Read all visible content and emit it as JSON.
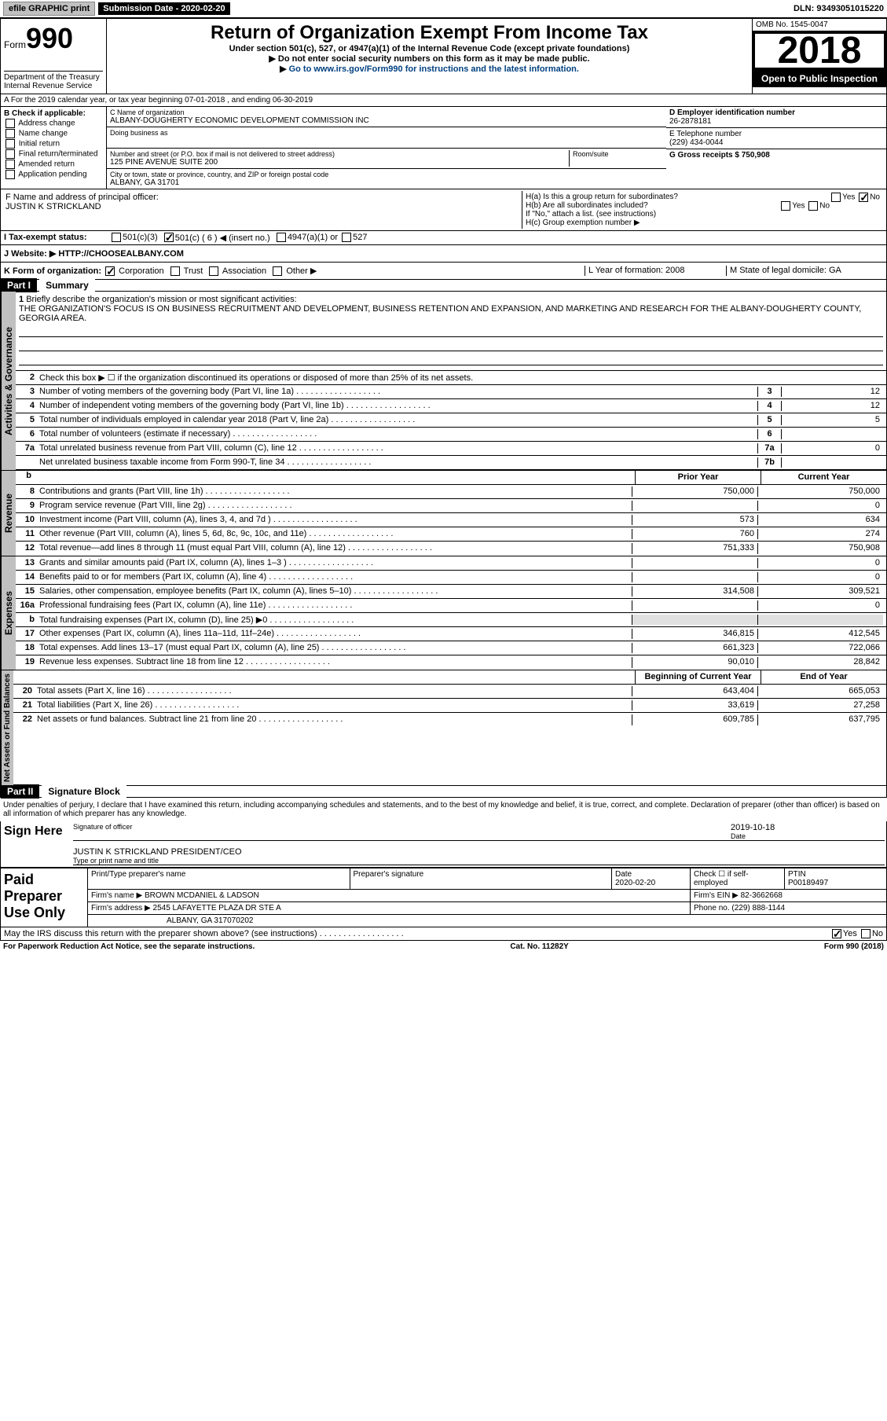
{
  "topbar": {
    "efile": "efile GRAPHIC print",
    "submission_label": "Submission Date - 2020-02-20",
    "dln_label": "DLN: 93493051015220"
  },
  "header": {
    "form_prefix": "Form",
    "form_number": "990",
    "dept": "Department of the Treasury\nInternal Revenue Service",
    "title": "Return of Organization Exempt From Income Tax",
    "under_section": "Under section 501(c), 527, or 4947(a)(1) of the Internal Revenue Code (except private foundations)",
    "ssn_notice": "Do not enter social security numbers on this form as it may be made public.",
    "goto": "Go to www.irs.gov/Form990 for instructions and the latest information.",
    "omb": "OMB No. 1545-0047",
    "year": "2018",
    "open_public": "Open to Public Inspection"
  },
  "rowA": "A For the 2019 calendar year, or tax year beginning 07-01-2018 , and ending 06-30-2019",
  "sectionB": {
    "title": "B Check if applicable:",
    "items": [
      "Address change",
      "Name change",
      "Initial return",
      "Final return/terminated",
      "Amended return",
      "Application pending"
    ]
  },
  "sectionC": {
    "name_label": "C Name of organization",
    "name": "ALBANY-DOUGHERTY ECONOMIC DEVELOPMENT COMMISSION INC",
    "dba_label": "Doing business as",
    "addr_label": "Number and street (or P.O. box if mail is not delivered to street address)",
    "addr": "125 PINE AVENUE SUITE 200",
    "room_label": "Room/suite",
    "city_label": "City or town, state or province, country, and ZIP or foreign postal code",
    "city": "ALBANY, GA  31701"
  },
  "sectionD": {
    "label": "D Employer identification number",
    "value": "26-2878181"
  },
  "sectionE": {
    "label": "E Telephone number",
    "value": "(229) 434-0044"
  },
  "sectionG": {
    "label": "G Gross receipts $ 750,908"
  },
  "sectionF": {
    "label": "F Name and address of principal officer:",
    "value": "JUSTIN K STRICKLAND"
  },
  "sectionH": {
    "a": "H(a) Is this a group return for subordinates?",
    "a_yes": "Yes",
    "a_no": "No",
    "b": "H(b) Are all subordinates included?",
    "b_yes": "Yes",
    "b_no": "No",
    "b_note": "If \"No,\" attach a list. (see instructions)",
    "c": "H(c) Group exemption number ▶"
  },
  "sectionI": {
    "label": "I Tax-exempt status:",
    "opts": [
      "501(c)(3)",
      "501(c) ( 6 ) ◀ (insert no.)",
      "4947(a)(1) or",
      "527"
    ]
  },
  "sectionJ": {
    "label": "J Website: ▶",
    "value": "HTTP://CHOOSEALBANY.COM"
  },
  "sectionK": {
    "label": "K Form of organization:",
    "opts": [
      "Corporation",
      "Trust",
      "Association",
      "Other ▶"
    ]
  },
  "sectionL": {
    "label": "L Year of formation: 2008"
  },
  "sectionM": {
    "label": "M State of legal domicile: GA"
  },
  "partI": {
    "label": "Part I",
    "title": "Summary"
  },
  "summary": {
    "q1": "Briefly describe the organization's mission or most significant activities:",
    "mission": "THE ORGANIZATION'S FOCUS IS ON BUSINESS RECRUITMENT AND DEVELOPMENT, BUSINESS RETENTION AND EXPANSION, AND MARKETING AND RESEARCH FOR THE ALBANY-DOUGHERTY COUNTY, GEORGIA AREA.",
    "q2": "Check this box ▶ ☐ if the organization discontinued its operations or disposed of more than 25% of its net assets.",
    "lines_simple": [
      {
        "num": "3",
        "text": "Number of voting members of the governing body (Part VI, line 1a)",
        "box": "3",
        "val": "12"
      },
      {
        "num": "4",
        "text": "Number of independent voting members of the governing body (Part VI, line 1b)",
        "box": "4",
        "val": "12"
      },
      {
        "num": "5",
        "text": "Total number of individuals employed in calendar year 2018 (Part V, line 2a)",
        "box": "5",
        "val": "5"
      },
      {
        "num": "6",
        "text": "Total number of volunteers (estimate if necessary)",
        "box": "6",
        "val": ""
      },
      {
        "num": "7a",
        "text": "Total unrelated business revenue from Part VIII, column (C), line 12",
        "box": "7a",
        "val": "0"
      },
      {
        "num": "",
        "text": "Net unrelated business taxable income from Form 990-T, line 34",
        "box": "7b",
        "val": ""
      }
    ],
    "col_prior": "Prior Year",
    "col_current": "Current Year",
    "revenue": [
      {
        "num": "8",
        "text": "Contributions and grants (Part VIII, line 1h)",
        "prior": "750,000",
        "curr": "750,000"
      },
      {
        "num": "9",
        "text": "Program service revenue (Part VIII, line 2g)",
        "prior": "",
        "curr": "0"
      },
      {
        "num": "10",
        "text": "Investment income (Part VIII, column (A), lines 3, 4, and 7d )",
        "prior": "573",
        "curr": "634"
      },
      {
        "num": "11",
        "text": "Other revenue (Part VIII, column (A), lines 5, 6d, 8c, 9c, 10c, and 11e)",
        "prior": "760",
        "curr": "274"
      },
      {
        "num": "12",
        "text": "Total revenue—add lines 8 through 11 (must equal Part VIII, column (A), line 12)",
        "prior": "751,333",
        "curr": "750,908"
      }
    ],
    "expenses": [
      {
        "num": "13",
        "text": "Grants and similar amounts paid (Part IX, column (A), lines 1–3 )",
        "prior": "",
        "curr": "0"
      },
      {
        "num": "14",
        "text": "Benefits paid to or for members (Part IX, column (A), line 4)",
        "prior": "",
        "curr": "0"
      },
      {
        "num": "15",
        "text": "Salaries, other compensation, employee benefits (Part IX, column (A), lines 5–10)",
        "prior": "314,508",
        "curr": "309,521"
      },
      {
        "num": "16a",
        "text": "Professional fundraising fees (Part IX, column (A), line 11e)",
        "prior": "",
        "curr": "0"
      },
      {
        "num": "b",
        "text": "Total fundraising expenses (Part IX, column (D), line 25) ▶0",
        "prior": "",
        "curr": "",
        "shaded": true
      },
      {
        "num": "17",
        "text": "Other expenses (Part IX, column (A), lines 11a–11d, 11f–24e)",
        "prior": "346,815",
        "curr": "412,545"
      },
      {
        "num": "18",
        "text": "Total expenses. Add lines 13–17 (must equal Part IX, column (A), line 25)",
        "prior": "661,323",
        "curr": "722,066"
      },
      {
        "num": "19",
        "text": "Revenue less expenses. Subtract line 18 from line 12",
        "prior": "90,010",
        "curr": "28,842"
      }
    ],
    "col_begin": "Beginning of Current Year",
    "col_end": "End of Year",
    "netassets": [
      {
        "num": "20",
        "text": "Total assets (Part X, line 16)",
        "prior": "643,404",
        "curr": "665,053"
      },
      {
        "num": "21",
        "text": "Total liabilities (Part X, line 26)",
        "prior": "33,619",
        "curr": "27,258"
      },
      {
        "num": "22",
        "text": "Net assets or fund balances. Subtract line 21 from line 20",
        "prior": "609,785",
        "curr": "637,795"
      }
    ]
  },
  "partII": {
    "label": "Part II",
    "title": "Signature Block"
  },
  "penalties": "Under penalties of perjury, I declare that I have examined this return, including accompanying schedules and statements, and to the best of my knowledge and belief, it is true, correct, and complete. Declaration of preparer (other than officer) is based on all information of which preparer has any knowledge.",
  "sign": {
    "here": "Sign Here",
    "sig_label": "Signature of officer",
    "date_label": "Date",
    "date": "2019-10-18",
    "name": "JUSTIN K STRICKLAND  PRESIDENT/CEO",
    "name_label": "Type or print name and title"
  },
  "paid": {
    "label": "Paid Preparer Use Only",
    "col1": "Print/Type preparer's name",
    "col2": "Preparer's signature",
    "col3": "Date",
    "date": "2020-02-20",
    "col4": "Check ☐ if self-employed",
    "col5": "PTIN",
    "ptin": "P00189497",
    "firm_label": "Firm's name ▶",
    "firm": "BROWN MCDANIEL & LADSON",
    "ein_label": "Firm's EIN ▶",
    "ein": "82-3662668",
    "addr_label": "Firm's address ▶",
    "addr1": "2545 LAFAYETTE PLAZA DR STE A",
    "addr2": "ALBANY, GA  317070202",
    "phone_label": "Phone no.",
    "phone": "(229) 888-1144"
  },
  "discuss": "May the IRS discuss this return with the preparer shown above? (see instructions)",
  "discuss_yes": "Yes",
  "discuss_no": "No",
  "footer": {
    "pra": "For Paperwork Reduction Act Notice, see the separate instructions.",
    "cat": "Cat. No. 11282Y",
    "form": "Form 990 (2018)"
  },
  "sidelabels": {
    "act_gov": "Activities & Governance",
    "revenue": "Revenue",
    "expenses": "Expenses",
    "netassets": "Net Assets or Fund Balances"
  }
}
